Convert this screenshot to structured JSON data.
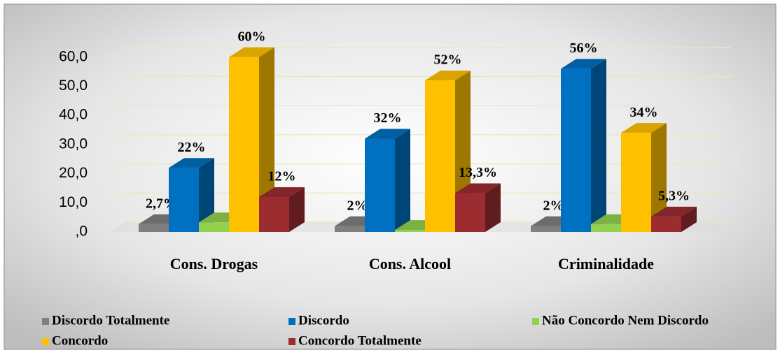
{
  "chart_data": {
    "type": "bar3d",
    "categories": [
      "Cons. Drogas",
      "Cons. Alcool",
      "Criminalidade"
    ],
    "series": [
      {
        "name": "Discordo Totalmente",
        "color": "#7f7f7f",
        "values": [
          2.7,
          2,
          2
        ],
        "value_labels": [
          "2,7%",
          "2%",
          "2%"
        ]
      },
      {
        "name": "Discordo",
        "color": "#0070c0",
        "values": [
          22,
          32,
          56
        ],
        "value_labels": [
          "22%",
          "32%",
          "56%"
        ]
      },
      {
        "name": "Não Concordo Nem Discordo",
        "color": "#92d050",
        "values": [
          3.3,
          0.7,
          2.7
        ]
      },
      {
        "name": "Concordo",
        "color": "#ffc000",
        "values": [
          60,
          52,
          34
        ],
        "value_labels": [
          "60%",
          "52%",
          "34%"
        ]
      },
      {
        "name": "Concordo Totalmente",
        "color": "#9b2d30",
        "values": [
          12,
          13.3,
          5.3
        ],
        "value_labels": [
          "12%",
          "13,3%",
          "5,3%"
        ]
      }
    ],
    "ylim": [
      0,
      70
    ],
    "yticks": [
      {
        "value": 0,
        "label": ",0"
      },
      {
        "value": 10,
        "label": "10,0"
      },
      {
        "value": 20,
        "label": "20,0"
      },
      {
        "value": 30,
        "label": "30,0"
      },
      {
        "value": 40,
        "label": "40,0"
      },
      {
        "value": 50,
        "label": "50,0"
      },
      {
        "value": 60,
        "label": "60,0"
      }
    ],
    "grid": true
  }
}
